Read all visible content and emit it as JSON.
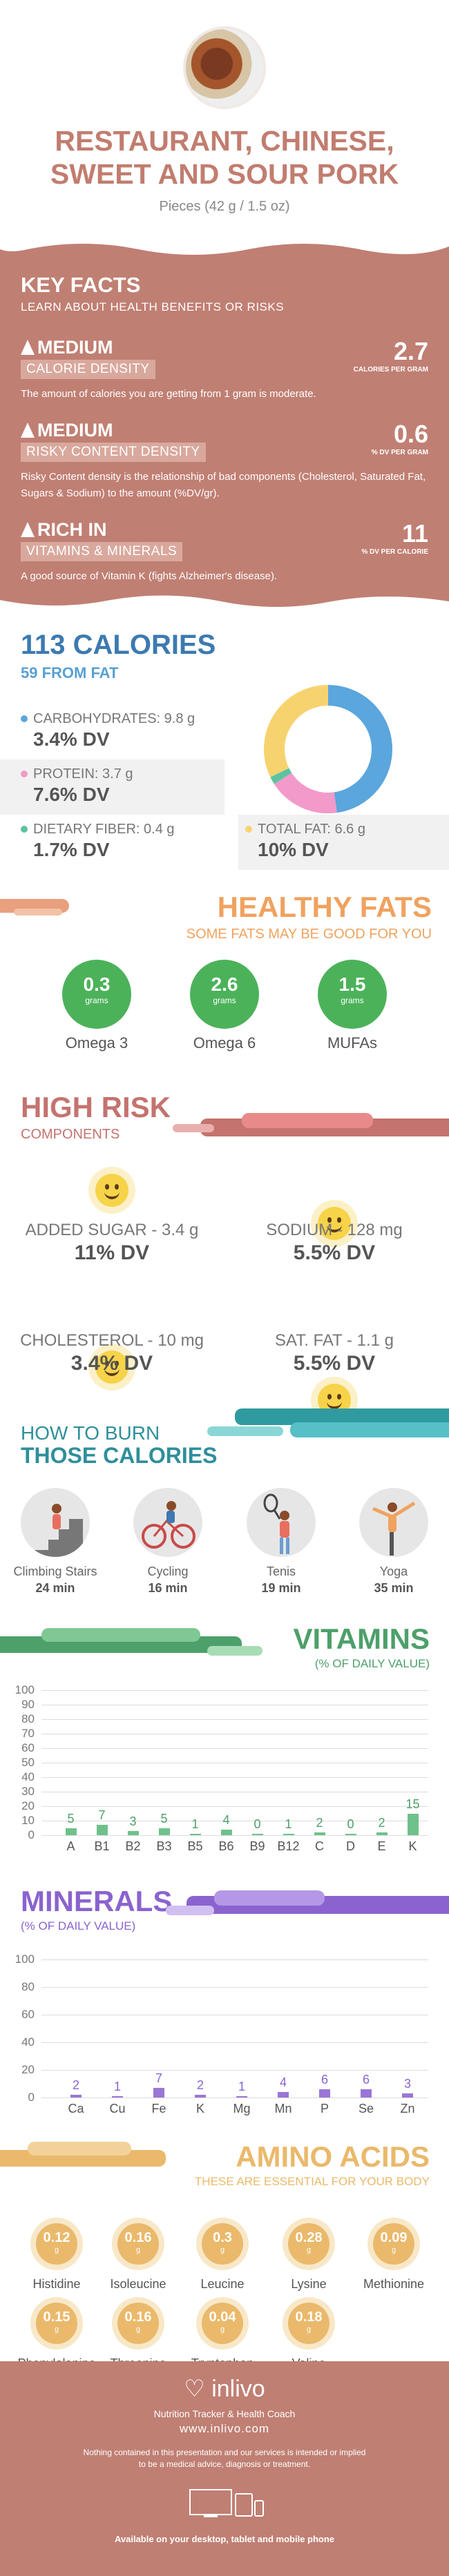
{
  "header": {
    "title_line1": "RESTAURANT, CHINESE,",
    "title_line2": "SWEET AND SOUR PORK",
    "serving": "Pieces (42 g / 1.5 oz)"
  },
  "key_facts": {
    "title": "KEY FACTS",
    "subtitle": "LEARN ABOUT HEALTH BENEFITS OR RISKS",
    "facts": [
      {
        "level": "MEDIUM",
        "tag": "CALORIE DENSITY",
        "value": "2.7",
        "unit": "CALORIES PER GRAM",
        "desc": "The amount of calories you are getting from 1 gram is moderate."
      },
      {
        "level": "MEDIUM",
        "tag": "RISKY CONTENT DENSITY",
        "value": "0.6",
        "unit": "% DV PER GRAM",
        "desc": "Risky Content density is the relationship of bad components (Cholesterol, Saturated Fat, Sugars & Sodium) to the amount (%DV/gr)."
      },
      {
        "level": "RICH  IN",
        "tag": "VITAMINS & MINERALS",
        "value": "11",
        "unit": "% DV PER CALORIE",
        "desc": "A good source of Vitamin K (fights Alzheimer's disease)."
      }
    ]
  },
  "calories": {
    "title": "113 CALORIES",
    "subtitle": "59 FROM FAT",
    "nutrients": [
      {
        "label": "CARBOHYDRATES: 9.8 g",
        "dv": "3.4% DV",
        "color": "#5aa6dd"
      },
      {
        "label": "PROTEIN: 3.7 g",
        "dv": "7.6% DV",
        "color": "#f29ac9"
      },
      {
        "label": "DIETARY FIBER: 0.4 g",
        "dv": "1.7% DV",
        "color": "#5cc3a2"
      },
      {
        "label": "TOTAL FAT: 6.6 g",
        "dv": "10% DV",
        "color": "#f7d36f"
      }
    ],
    "donut": [
      {
        "name": "carbohydrates",
        "value": 9.8,
        "color": "#5aa6dd"
      },
      {
        "name": "protein",
        "value": 3.7,
        "color": "#f29ac9"
      },
      {
        "name": "fiber",
        "value": 0.4,
        "color": "#5cc3a2"
      },
      {
        "name": "fat",
        "value": 6.6,
        "color": "#f7d36f"
      }
    ]
  },
  "healthy_fats": {
    "title": "HEALTHY FATS",
    "subtitle": "SOME FATS MAY BE GOOD FOR YOU",
    "unit": "grams",
    "items": [
      {
        "value": "0.3",
        "name": "Omega 3"
      },
      {
        "value": "2.6",
        "name": "Omega 6"
      },
      {
        "value": "1.5",
        "name": "MUFAs"
      }
    ]
  },
  "high_risk": {
    "title": "HIGH RISK",
    "subtitle": "COMPONENTS",
    "items": [
      {
        "label": "ADDED SUGAR - 3.4 g",
        "dv": "11% DV"
      },
      {
        "label": "SODIUM - 128 mg",
        "dv": "5.5% DV"
      },
      {
        "label": "CHOLESTEROL - 10 mg",
        "dv": "3.4% DV"
      },
      {
        "label": "SAT. FAT - 1.1 g",
        "dv": "5.5% DV"
      }
    ]
  },
  "burn": {
    "title_line1": "HOW TO BURN",
    "title_line2": "THOSE CALORIES",
    "activities": [
      {
        "name": "Climbing Stairs",
        "time": "24 min"
      },
      {
        "name": "Cycling",
        "time": "16 min"
      },
      {
        "name": "Tenis",
        "time": "19 min"
      },
      {
        "name": "Yoga",
        "time": "35 min"
      }
    ]
  },
  "vitamins": {
    "title": "VITAMINS",
    "subtitle": "(% OF DAILY VALUE)",
    "chart_data": {
      "type": "bar",
      "categories": [
        "A",
        "B1",
        "B2",
        "B3",
        "B5",
        "B6",
        "B9",
        "B12",
        "C",
        "D",
        "E",
        "K"
      ],
      "values": [
        5,
        7,
        3,
        5,
        1,
        4,
        0,
        1,
        2,
        0,
        2,
        15
      ],
      "yticks": [
        0,
        10,
        20,
        30,
        40,
        50,
        60,
        70,
        80,
        90,
        100
      ],
      "ylim": [
        0,
        100
      ],
      "color": "#6ec18a",
      "label_color": "#4da06a"
    }
  },
  "minerals": {
    "title": "MINERALS",
    "subtitle": "(% OF DAILY VALUE)",
    "chart_data": {
      "type": "bar",
      "categories": [
        "Ca",
        "Cu",
        "Fe",
        "K",
        "Mg",
        "Mn",
        "P",
        "Se",
        "Zn"
      ],
      "values": [
        2,
        1,
        7,
        2,
        1,
        4,
        6,
        6,
        3
      ],
      "yticks": [
        0,
        20,
        40,
        60,
        80,
        100
      ],
      "ylim": [
        0,
        100
      ],
      "color": "#9a76d6",
      "label_color": "#8a63cf"
    }
  },
  "amino": {
    "title": "AMINO ACIDS",
    "subtitle": "THESE ARE ESSENTIAL FOR YOUR BODY",
    "unit": "g",
    "items": [
      {
        "value": "0.12",
        "name": "Histidine"
      },
      {
        "value": "0.16",
        "name": "Isoleucine"
      },
      {
        "value": "0.3",
        "name": "Leucine"
      },
      {
        "value": "0.28",
        "name": "Lysine"
      },
      {
        "value": "0.09",
        "name": "Methionine"
      },
      {
        "value": "0.15",
        "name": "Phenylalanine"
      },
      {
        "value": "0.16",
        "name": "Threonine"
      },
      {
        "value": "0.04",
        "name": "Tryptophan"
      },
      {
        "value": "0.18",
        "name": "Valine"
      }
    ]
  },
  "footer": {
    "brand": "inlivo",
    "tagline": "Nutrition Tracker & Health Coach",
    "url": "www.inlivo.com",
    "disclaimer_line1": "Nothing contained in this presentation and our services is intended or implied",
    "disclaimer_line2": "to be a medical advice, diagnosis or treatment.",
    "available": "Available on your desktop, tablet and mobile phone"
  }
}
